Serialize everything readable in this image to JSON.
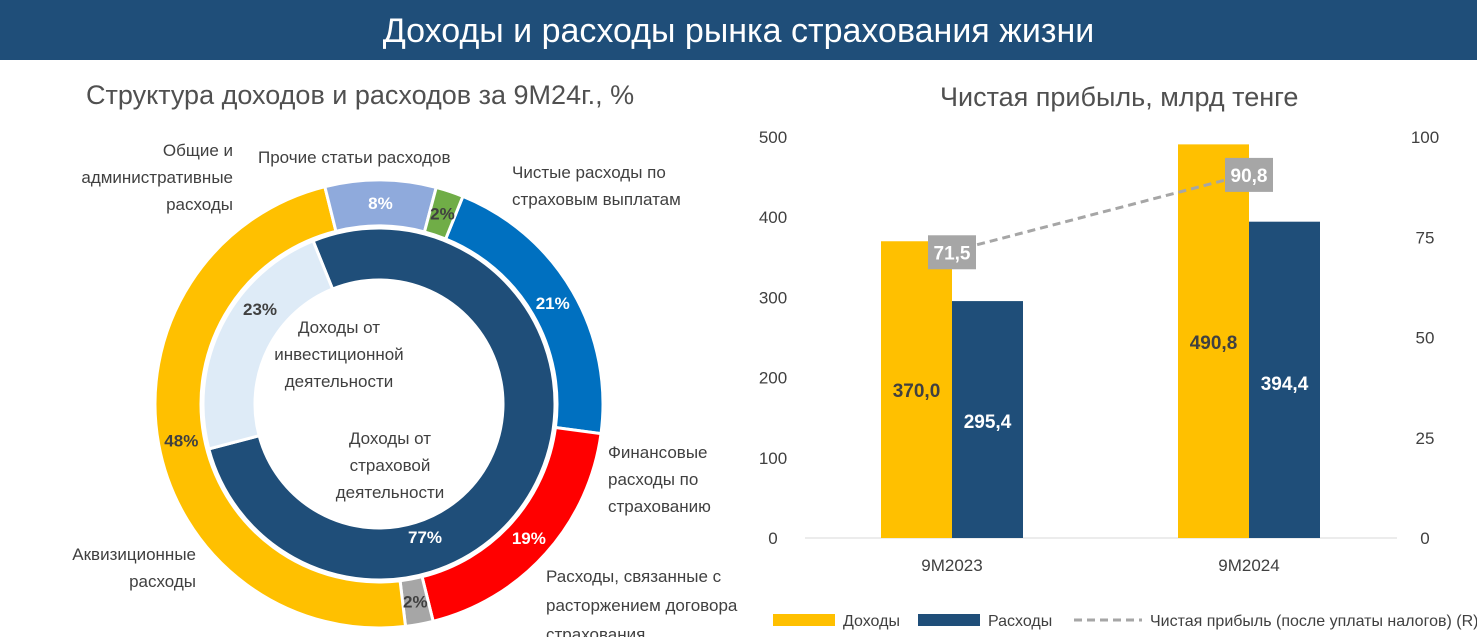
{
  "header": {
    "title": "Доходы и расходы рынка страхования жизни"
  },
  "donut_panel": {
    "title": "Структура доходов и расходов за 9М24г., %"
  },
  "bar_panel": {
    "title": "Чистая прибыль, млрд тенге"
  },
  "colors": {
    "header_bg": "#1f4e79",
    "income": "#ffc000",
    "expenses": "#1f4e79",
    "net_profit_line": "#a6a6a6",
    "claims": "#0070c0",
    "financial": "#ff0000",
    "termination": "#a6a6a6",
    "acquisition": "#ffc000",
    "admin": "#8faadc",
    "other": "#70ad47",
    "investment": "#deebf7",
    "insurance_activity": "#1f4e79"
  },
  "chart_data": [
    {
      "type": "pie",
      "title": "Структура доходов и расходов за 9М24г., %",
      "rings": [
        {
          "name": "outer",
          "slices": [
            {
              "label": "Чистые расходы по страховым выплатам",
              "value": 21,
              "display": "21%",
              "color": "#0070c0"
            },
            {
              "label": "Финансовые расходы по страхованию",
              "value": 19,
              "display": "19%",
              "color": "#ff0000"
            },
            {
              "label": "Расходы, связанные с расторжением договора страхования",
              "value": 2,
              "display": "2%",
              "color": "#a6a6a6"
            },
            {
              "label": "Аквизиционные расходы",
              "value": 48,
              "display": "48%",
              "color": "#ffc000"
            },
            {
              "label": "Общие и административные расходы",
              "value": 8,
              "display": "8%",
              "color": "#8faadc"
            },
            {
              "label": "Прочие статьи расходов",
              "value": 2,
              "display": "2%",
              "color": "#70ad47"
            }
          ]
        },
        {
          "name": "inner",
          "slices": [
            {
              "label": "Доходы от страховой деятельности",
              "value": 77,
              "display": "77%",
              "color": "#1f4e79"
            },
            {
              "label": "Доходы от инвестиционной деятельности",
              "value": 23,
              "display": "23%",
              "color": "#deebf7"
            }
          ]
        }
      ],
      "outer_labels": {
        "claims": [
          "Чистые расходы по",
          "страховым выплатам"
        ],
        "financial": [
          "Финансовые",
          "расходы по",
          "страхованию"
        ],
        "termination": [
          "Расходы, связанные с",
          "расторжением договора",
          "страхования"
        ],
        "acquisition": [
          "Аквизиционные",
          "расходы"
        ],
        "admin": [
          "Общие и",
          "административные",
          "расходы"
        ],
        "other": [
          "Прочие статьи расходов"
        ]
      },
      "inner_labels": {
        "investment": [
          "Доходы от",
          "инвестиционной",
          "деятельности"
        ],
        "insurance": [
          "Доходы от",
          "страховой",
          "деятельности"
        ]
      }
    },
    {
      "type": "bar",
      "title": "Чистая прибыль, млрд тенге",
      "categories": [
        "9M2023",
        "9M2024"
      ],
      "series": [
        {
          "name": "Доходы",
          "values": [
            370.0,
            490.8
          ],
          "labels": [
            "370,0",
            "490,8"
          ],
          "color": "#ffc000",
          "axis": "left"
        },
        {
          "name": "Расходы",
          "values": [
            295.4,
            394.4
          ],
          "labels": [
            "295,4",
            "394,4"
          ],
          "color": "#1f4e79",
          "axis": "left"
        },
        {
          "name": "Чистая прибыль (после уплаты налогов) (R)",
          "type": "line",
          "values": [
            71.5,
            90.8
          ],
          "labels": [
            "71,5",
            "90,8"
          ],
          "color": "#a6a6a6",
          "axis": "right",
          "dashed": true
        }
      ],
      "ylim": [
        0,
        500
      ],
      "yticks": [
        "0",
        "100",
        "200",
        "300",
        "400",
        "500"
      ],
      "y2lim": [
        0,
        100
      ],
      "y2ticks": [
        "0",
        "25",
        "50",
        "75",
        "100"
      ],
      "grid": false,
      "legend": "bottom"
    }
  ]
}
